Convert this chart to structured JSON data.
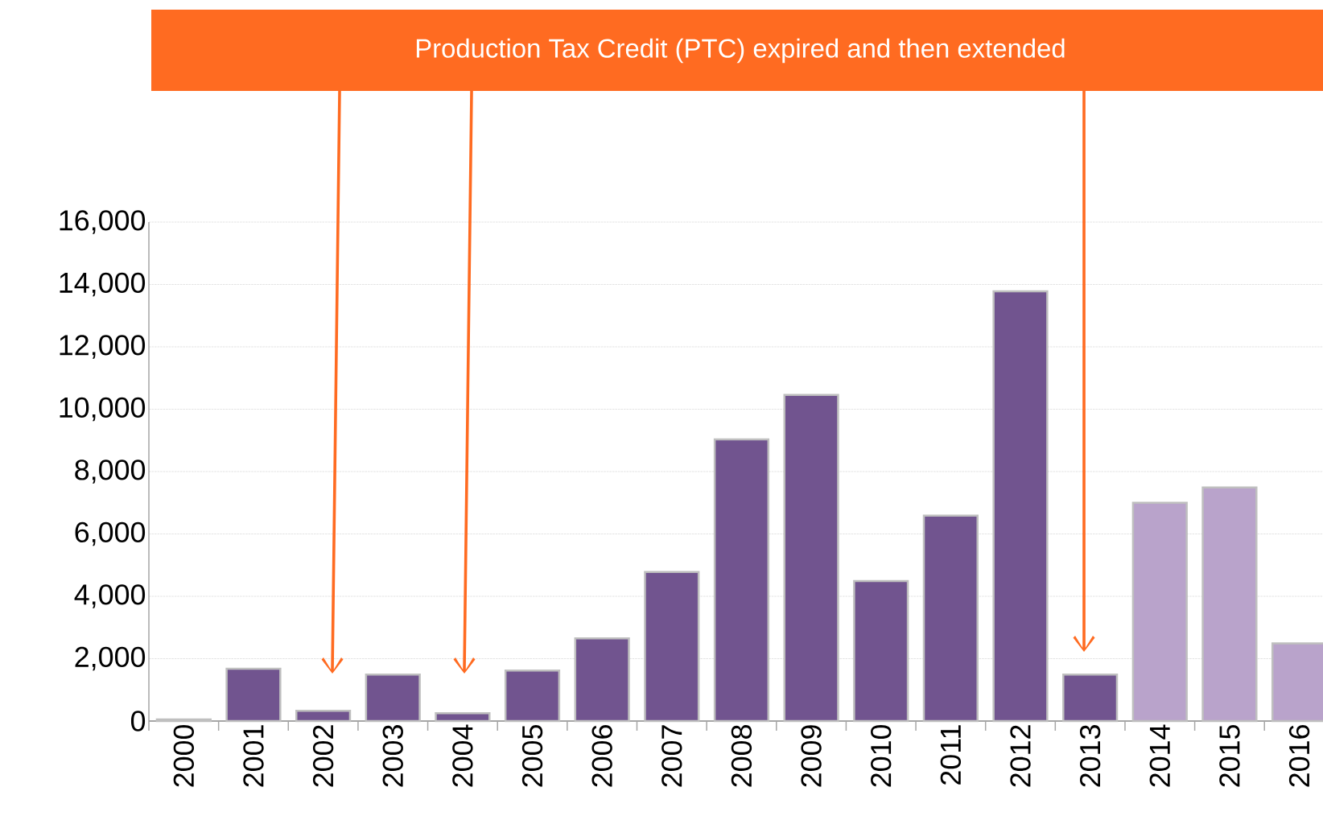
{
  "chart_data": {
    "type": "bar",
    "categories": [
      "2000",
      "2001",
      "2002",
      "2003",
      "2004",
      "2005",
      "2006",
      "2007",
      "2008",
      "2009",
      "2010",
      "2011",
      "2012",
      "2013",
      "2014",
      "2015",
      "2016"
    ],
    "values": [
      50,
      1680,
      330,
      1490,
      250,
      1620,
      2650,
      4780,
      9030,
      10460,
      4490,
      6590,
      13780,
      1490,
      7000,
      7490,
      2490
    ],
    "colors": [
      "#71548f",
      "#71548f",
      "#71548f",
      "#71548f",
      "#71548f",
      "#71548f",
      "#71548f",
      "#71548f",
      "#71548f",
      "#71548f",
      "#71548f",
      "#71548f",
      "#71548f",
      "#71548f",
      "#b9a3cb",
      "#b9a3cb",
      "#b9a3cb"
    ],
    "ylim": [
      0,
      16000
    ],
    "yticks": [
      {
        "value": 0,
        "label": "0"
      },
      {
        "value": 2000,
        "label": "2,000"
      },
      {
        "value": 4000,
        "label": "4,000"
      },
      {
        "value": 6000,
        "label": "6,000"
      },
      {
        "value": 8000,
        "label": "8,000"
      },
      {
        "value": 10000,
        "label": "10,000"
      },
      {
        "value": 12000,
        "label": "12,000"
      },
      {
        "value": 14000,
        "label": "14,000"
      },
      {
        "value": 16000,
        "label": "16,000"
      }
    ],
    "grid": "y",
    "annotations": [
      "Production Tax Credit (PTC) expired and then extended"
    ]
  }
}
